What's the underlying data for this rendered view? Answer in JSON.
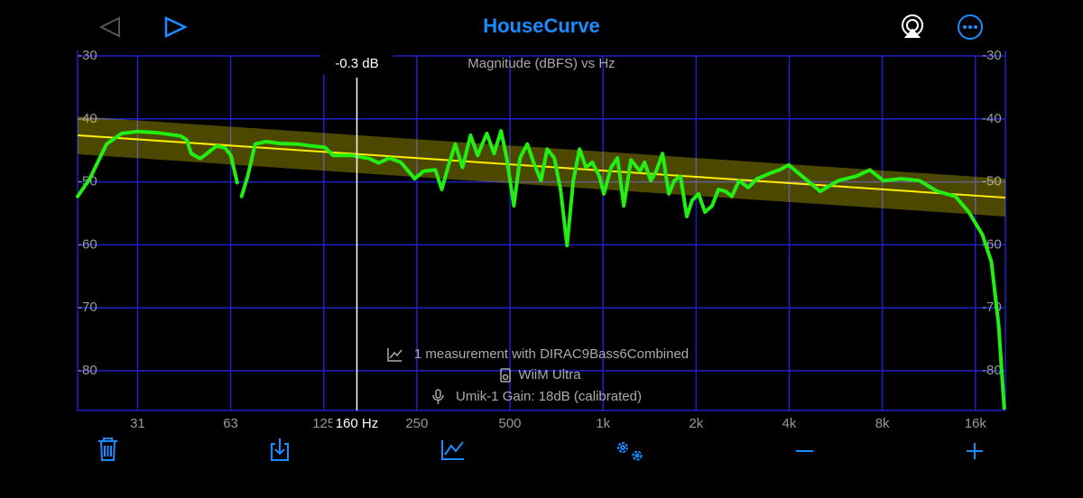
{
  "header": {
    "title": "HouseCurve"
  },
  "chart_data": {
    "type": "line",
    "subtitle": "Magnitude (dBFS) vs Hz",
    "log_x": true,
    "grid": true,
    "xlim": [
      20,
      20000
    ],
    "ylim": [
      -86.3,
      -30
    ],
    "xticks": [
      {
        "value": 31.25,
        "label": "31"
      },
      {
        "value": 62.5,
        "label": "63"
      },
      125,
      250,
      500,
      {
        "value": 1000,
        "label": "1k"
      },
      {
        "value": 2000,
        "label": "2k"
      },
      {
        "value": 4000,
        "label": "4k"
      },
      {
        "value": 8000,
        "label": "8k"
      },
      {
        "value": 16000,
        "label": "16k"
      }
    ],
    "yticks": [
      -30,
      -40,
      -50,
      -60,
      -70,
      -80
    ],
    "x": [
      20,
      21.9,
      24.8,
      27.8,
      31.2,
      36.3,
      43,
      45,
      46.6,
      49.8,
      53.3,
      56.2,
      60,
      62.6,
      65.6,
      66.5,
      67.8,
      71,
      75,
      81.3,
      89.9,
      103,
      114,
      126,
      134,
      154,
      176,
      188,
      204,
      222,
      246,
      263,
      287,
      301,
      315,
      333,
      351,
      373,
      393,
      421,
      444,
      468,
      488,
      515,
      539,
      569,
      596,
      630,
      660,
      696,
      729,
      765,
      801,
      840,
      880,
      923,
      973,
      1006,
      1062,
      1114,
      1167,
      1231,
      1317,
      1362,
      1427,
      1486,
      1557,
      1632,
      1700,
      1780,
      1866,
      1943,
      2036,
      2136,
      2252,
      2360,
      2490,
      2610,
      2754,
      2946,
      3150,
      3484,
      3724,
      3984,
      4404,
      5040,
      5764,
      6592,
      7288,
      8056,
      9216,
      10540,
      12060,
      13780,
      15240,
      16860,
      18020,
      19020,
      19820
    ],
    "series": [
      {
        "color": "#22ee11",
        "values": [
          -52.3,
          -49.5,
          -44.0,
          -42.3,
          -42.0,
          -42.2,
          -42.7,
          -43.3,
          -45.5,
          -46.3,
          -45.2,
          -44.3,
          -44.6,
          -45.8,
          -50.1,
          null,
          -52.3,
          -49.1,
          -44.0,
          -43.6,
          -43.9,
          -44.0,
          -44.3,
          -44.5,
          -45.8,
          -45.8,
          -46.3,
          -47.0,
          -46.2,
          -46.9,
          -49.5,
          -48.3,
          -48.1,
          -51.2,
          -47.7,
          -44.0,
          -47.7,
          -42.6,
          -45.8,
          -42.3,
          -45.5,
          -41.9,
          -46.2,
          -53.8,
          -46.2,
          -44.0,
          -46.9,
          -49.8,
          -44.8,
          -46.2,
          -51.2,
          -60.1,
          -49.8,
          -44.8,
          -47.7,
          -46.9,
          -49.1,
          -51.9,
          -47.7,
          -46.2,
          -53.8,
          -46.5,
          -48.3,
          -46.9,
          -49.8,
          -48.3,
          -45.5,
          -51.9,
          -49.8,
          -49.1,
          -55.5,
          -52.9,
          -51.9,
          -54.8,
          -53.8,
          -51.2,
          -51.5,
          -52.3,
          -49.8,
          -50.9,
          -49.5,
          -48.6,
          -48.1,
          -47.3,
          -49.1,
          -51.5,
          -49.8,
          -49.1,
          -48.1,
          -49.8,
          -49.5,
          -49.8,
          -51.5,
          -52.3,
          -54.8,
          -58.4,
          -62.7,
          -72.7,
          -85.9
        ]
      }
    ],
    "target": {
      "x": [
        20,
        20000
      ],
      "values": [
        -42.6,
        -52.5
      ],
      "band": 3,
      "color": "#ffee00"
    },
    "cursor": {
      "x": 160,
      "x_label": "160 Hz",
      "label": "-0.3 dB"
    }
  },
  "info": {
    "measurement": "1 measurement with DIRAC9Bass6Combined",
    "device": "WiiM Ultra",
    "mic": "Umik-1  Gain: 18dB (calibrated)"
  }
}
